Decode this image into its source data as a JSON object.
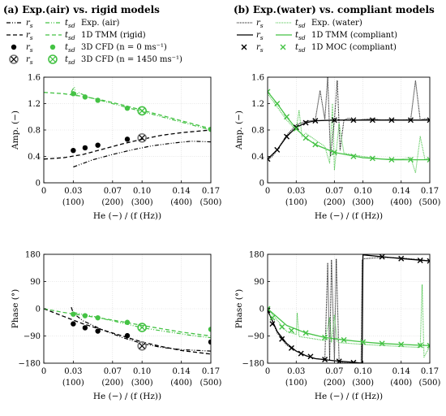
{
  "chart_data": [
    {
      "panel_label": "(a)",
      "title": "Exp.(air) vs. rigid models",
      "type": "line",
      "row": "amplitude",
      "xlabel": "He (−) / (f (Hz))",
      "ylabel": "Amp. (−)",
      "xlim": [
        0,
        0.17
      ],
      "ylim": [
        0,
        1.6
      ],
      "xticks": [
        "0",
        "0.03",
        "0.07",
        "0.10",
        "0.14",
        "0.17"
      ],
      "xticks2": [
        "(100)",
        "(200)",
        "(300)",
        "(400)",
        "(500)"
      ],
      "yticks": [
        "0",
        "0.4",
        "0.8",
        "1.2",
        "1.6"
      ],
      "legend": [
        {
          "label1": "r",
          "sub1": "s",
          "label2": "t",
          "sub2": "sd",
          "text": "Exp. (air)"
        },
        {
          "label1": "r",
          "sub1": "s",
          "label2": "t",
          "sub2": "sd",
          "text": "1D TMM (rigid)"
        },
        {
          "label1": "r",
          "sub1": "s",
          "label2": "t",
          "sub2": "sd",
          "text": "3D CFD (n = 0 ms⁻¹)"
        },
        {
          "label1": "r",
          "sub1": "s",
          "label2": "t",
          "sub2": "sd",
          "text": "3D CFD (n = 1450 ms⁻¹)"
        }
      ],
      "series": [
        {
          "name": "r_s Exp. (air)",
          "x": [
            0.03,
            0.05,
            0.07,
            0.09,
            0.11,
            0.13,
            0.15,
            0.17
          ],
          "y": [
            0.24,
            0.35,
            0.43,
            0.5,
            0.56,
            0.6,
            0.63,
            0.62
          ]
        },
        {
          "name": "t_sd Exp. (air)",
          "x": [
            0.028,
            0.031,
            0.033,
            0.035,
            0.045,
            0.07,
            0.1,
            0.13,
            0.15,
            0.17
          ],
          "y": [
            1.38,
            1.45,
            1.32,
            1.37,
            1.3,
            1.2,
            1.08,
            0.96,
            0.88,
            0.8
          ]
        },
        {
          "name": "r_s 1D TMM (rigid)",
          "x": [
            0,
            0.02,
            0.04,
            0.06,
            0.08,
            0.1,
            0.12,
            0.14,
            0.17
          ],
          "y": [
            0.36,
            0.38,
            0.43,
            0.51,
            0.59,
            0.66,
            0.72,
            0.76,
            0.8
          ]
        },
        {
          "name": "t_sd 1D TMM (rigid)",
          "x": [
            0,
            0.02,
            0.04,
            0.06,
            0.08,
            0.1,
            0.12,
            0.14,
            0.17
          ],
          "y": [
            1.37,
            1.35,
            1.31,
            1.25,
            1.18,
            1.1,
            1.02,
            0.94,
            0.82
          ]
        },
        {
          "name": "r_s 3D CFD (n = 0)",
          "x": [
            0.03,
            0.042,
            0.055,
            0.085
          ],
          "y": [
            0.49,
            0.53,
            0.57,
            0.66
          ]
        },
        {
          "name": "t_sd 3D CFD (n = 0)",
          "x": [
            0.03,
            0.042,
            0.055,
            0.085,
            0.17
          ],
          "y": [
            1.35,
            1.3,
            1.25,
            1.13,
            0.81
          ]
        },
        {
          "name": "r_s 3D CFD (n = 1450)",
          "x": [
            0.1
          ],
          "y": [
            0.68
          ]
        },
        {
          "name": "t_sd 3D CFD (n = 1450)",
          "x": [
            0.1
          ],
          "y": [
            1.09
          ]
        }
      ]
    },
    {
      "panel_label": "(a)",
      "type": "line",
      "row": "phase",
      "xlabel": "He (−) / (f (Hz))",
      "ylabel": "Phase (°)",
      "xlim": [
        0,
        0.17
      ],
      "ylim": [
        -180,
        180
      ],
      "xticks": [
        "0",
        "0.03",
        "0.07",
        "0.10",
        "0.14",
        "0.17"
      ],
      "xticks2": [
        "(100)",
        "(200)",
        "(300)",
        "(400)",
        "(500)"
      ],
      "yticks": [
        "180",
        "90",
        "0",
        "−90",
        "−180"
      ],
      "series": [
        {
          "name": "r_s Exp. (air)",
          "x": [
            0.028,
            0.03,
            0.04,
            0.06,
            0.08,
            0.1,
            0.12,
            0.14,
            0.17
          ],
          "y": [
            5,
            -15,
            -40,
            -70,
            -95,
            -115,
            -128,
            -135,
            -140
          ]
        },
        {
          "name": "t_sd Exp. (air)",
          "x": [
            0.03,
            0.05,
            0.07,
            0.09,
            0.1,
            0.12,
            0.15,
            0.17
          ],
          "y": [
            -12,
            -25,
            -40,
            -55,
            -63,
            -73,
            -88,
            -96
          ]
        },
        {
          "name": "r_s 1D TMM (rigid)",
          "x": [
            0,
            0.02,
            0.04,
            0.06,
            0.08,
            0.1,
            0.12,
            0.14,
            0.17
          ],
          "y": [
            0,
            -25,
            -50,
            -70,
            -90,
            -110,
            -125,
            -138,
            -150
          ]
        },
        {
          "name": "t_sd 1D TMM (rigid)",
          "x": [
            0,
            0.02,
            0.04,
            0.06,
            0.08,
            0.1,
            0.12,
            0.14,
            0.17
          ],
          "y": [
            0,
            -12,
            -22,
            -32,
            -43,
            -55,
            -66,
            -77,
            -90
          ]
        },
        {
          "name": "r_s 3D CFD (n = 0)",
          "x": [
            0.03,
            0.042,
            0.055,
            0.085,
            0.17
          ],
          "y": [
            -50,
            -63,
            -74,
            -89,
            -110
          ]
        },
        {
          "name": "t_sd 3D CFD (n = 0)",
          "x": [
            0.03,
            0.042,
            0.055,
            0.085,
            0.17
          ],
          "y": [
            -18,
            -23,
            -30,
            -45,
            -68
          ]
        },
        {
          "name": "r_s 3D CFD (n = 1450)",
          "x": [
            0.1
          ],
          "y": [
            -123
          ]
        },
        {
          "name": "t_sd 3D CFD (n = 1450)",
          "x": [
            0.1
          ],
          "y": [
            -62
          ]
        }
      ]
    },
    {
      "panel_label": "(b)",
      "title": "Exp.(water) vs. compliant models",
      "type": "line",
      "row": "amplitude",
      "xlabel": "He (−) / (f (Hz))",
      "ylabel": "Amp. (−)",
      "xlim": [
        0,
        0.17
      ],
      "ylim": [
        0,
        1.6
      ],
      "xticks": [
        "0",
        "0.03",
        "0.07",
        "0.10",
        "0.14",
        "0.17"
      ],
      "xticks2": [
        "(100)",
        "(200)",
        "(300)",
        "(400)",
        "(500)"
      ],
      "yticks": [
        "0",
        "0.4",
        "0.8",
        "1.2",
        "1.6"
      ],
      "legend": [
        {
          "label1": "r",
          "sub1": "s",
          "label2": "t",
          "sub2": "sd",
          "text": "Exp. (water)"
        },
        {
          "label1": "r",
          "sub1": "s",
          "label2": "t",
          "sub2": "sd",
          "text": "1D TMM (compliant)"
        },
        {
          "label1": "r",
          "sub1": "s",
          "label2": "t",
          "sub2": "sd",
          "text": "1D MOC (compliant)"
        }
      ],
      "series": [
        {
          "name": "r_s Exp. (water)",
          "x": [
            0,
            0.005,
            0.01,
            0.02,
            0.03,
            0.04,
            0.05,
            0.055,
            0.06,
            0.063,
            0.066,
            0.07,
            0.073,
            0.076,
            0.08,
            0.085,
            0.09,
            0.1,
            0.11,
            0.12,
            0.13,
            0.14,
            0.15,
            0.155,
            0.16,
            0.165,
            0.17
          ],
          "y": [
            0.35,
            0.4,
            0.5,
            0.72,
            0.88,
            0.93,
            0.95,
            1.4,
            0.96,
            1.6,
            0.4,
            0.95,
            1.55,
            0.5,
            0.95,
            0.98,
            0.94,
            0.96,
            0.97,
            0.95,
            0.96,
            0.95,
            0.96,
            1.55,
            0.95,
            0.97,
            0.95
          ]
        },
        {
          "name": "t_sd Exp. (water)",
          "x": [
            0,
            0.005,
            0.01,
            0.02,
            0.03,
            0.033,
            0.036,
            0.04,
            0.05,
            0.06,
            0.065,
            0.068,
            0.07,
            0.075,
            0.08,
            0.09,
            0.1,
            0.12,
            0.14,
            0.15,
            0.155,
            0.16,
            0.165,
            0.17
          ],
          "y": [
            1.35,
            1.25,
            1.15,
            0.95,
            0.8,
            1.1,
            0.7,
            0.75,
            0.65,
            0.55,
            0.3,
            1.2,
            0.2,
            0.9,
            0.45,
            0.42,
            0.4,
            0.36,
            0.36,
            0.38,
            0.15,
            0.7,
            0.35,
            0.38
          ]
        },
        {
          "name": "r_s 1D TMM (compliant)",
          "x": [
            0,
            0.01,
            0.02,
            0.03,
            0.04,
            0.05,
            0.07,
            0.1,
            0.13,
            0.17
          ],
          "y": [
            0.36,
            0.5,
            0.7,
            0.84,
            0.91,
            0.94,
            0.95,
            0.95,
            0.95,
            0.95
          ]
        },
        {
          "name": "t_sd 1D TMM (compliant)",
          "x": [
            0,
            0.01,
            0.02,
            0.03,
            0.04,
            0.05,
            0.07,
            0.1,
            0.13,
            0.17
          ],
          "y": [
            1.38,
            1.2,
            1.0,
            0.82,
            0.68,
            0.58,
            0.46,
            0.38,
            0.35,
            0.35
          ]
        },
        {
          "name": "r_s 1D MOC (compliant)",
          "x": [
            0,
            0.01,
            0.02,
            0.03,
            0.04,
            0.05,
            0.07,
            0.09,
            0.11,
            0.13,
            0.15,
            0.17
          ],
          "y": [
            0.36,
            0.5,
            0.7,
            0.84,
            0.91,
            0.94,
            0.95,
            0.95,
            0.95,
            0.95,
            0.95,
            0.95
          ]
        },
        {
          "name": "t_sd 1D MOC (compliant)",
          "x": [
            0,
            0.01,
            0.02,
            0.03,
            0.04,
            0.05,
            0.07,
            0.09,
            0.11,
            0.13,
            0.15,
            0.17
          ],
          "y": [
            1.38,
            1.2,
            1.0,
            0.82,
            0.68,
            0.58,
            0.46,
            0.4,
            0.37,
            0.35,
            0.35,
            0.35
          ]
        }
      ]
    },
    {
      "panel_label": "(b)",
      "type": "line",
      "row": "phase",
      "xlabel": "He (−) / (f (Hz))",
      "ylabel": "Phase (°)",
      "xlim": [
        0,
        0.17
      ],
      "ylim": [
        -180,
        180
      ],
      "xticks": [
        "0",
        "0.03",
        "0.07",
        "0.10",
        "0.14",
        "0.17"
      ],
      "xticks2": [
        "(100)",
        "(200)",
        "(300)",
        "(400)",
        "(500)"
      ],
      "yticks": [
        "180",
        "90",
        "0",
        "−90",
        "−180"
      ],
      "series": [
        {
          "name": "r_s Exp. (water)",
          "x": [
            0,
            0.005,
            0.01,
            0.02,
            0.03,
            0.04,
            0.05,
            0.06,
            0.063,
            0.065,
            0.067,
            0.07,
            0.072,
            0.075,
            0.08,
            0.09,
            0.098,
            0.099,
            0.1,
            0.12,
            0.14,
            0.16,
            0.17
          ],
          "y": [
            -5,
            -40,
            -80,
            -120,
            -140,
            -155,
            -165,
            -168,
            150,
            -170,
            160,
            -172,
            165,
            -175,
            -178,
            -178,
            -180,
            160,
            165,
            170,
            168,
            162,
            158
          ]
        },
        {
          "name": "t_sd Exp. (water)",
          "x": [
            0,
            0.02,
            0.03,
            0.031,
            0.033,
            0.06,
            0.065,
            0.067,
            0.07,
            0.073,
            0.075,
            0.1,
            0.14,
            0.16,
            0.162,
            0.164,
            0.17
          ],
          "y": [
            0,
            -75,
            -85,
            -15,
            -92,
            -105,
            -30,
            -110,
            -20,
            -108,
            -112,
            -118,
            -125,
            -128,
            80,
            -160,
            -125
          ]
        },
        {
          "name": "r_s 1D TMM (compliant)",
          "x": [
            0,
            0.01,
            0.02,
            0.03,
            0.04,
            0.05,
            0.07,
            0.09,
            0.099,
            0.1,
            0.12,
            0.14,
            0.17
          ],
          "y": [
            -5,
            -75,
            -115,
            -140,
            -155,
            -165,
            -172,
            -177,
            -180,
            178,
            172,
            166,
            158
          ]
        },
        {
          "name": "t_sd 1D TMM (compliant)",
          "x": [
            0,
            0.02,
            0.04,
            0.06,
            0.08,
            0.1,
            0.12,
            0.14,
            0.17
          ],
          "y": [
            0,
            -55,
            -80,
            -95,
            -103,
            -110,
            -115,
            -118,
            -122
          ]
        },
        {
          "name": "r_s 1D MOC (compliant)",
          "x": [
            0,
            0.005,
            0.015,
            0.025,
            0.035,
            0.045,
            0.06,
            0.075,
            0.09,
            0.12,
            0.14,
            0.16,
            0.17
          ],
          "y": [
            -5,
            -50,
            -100,
            -130,
            -148,
            -158,
            -168,
            -174,
            -178,
            172,
            166,
            160,
            158
          ]
        },
        {
          "name": "t_sd 1D MOC (compliant)",
          "x": [
            0,
            0.005,
            0.015,
            0.025,
            0.04,
            0.06,
            0.08,
            0.1,
            0.12,
            0.14,
            0.16,
            0.17
          ],
          "y": [
            0,
            -30,
            -60,
            -72,
            -80,
            -95,
            -103,
            -110,
            -115,
            -118,
            -121,
            -122
          ]
        }
      ]
    }
  ]
}
